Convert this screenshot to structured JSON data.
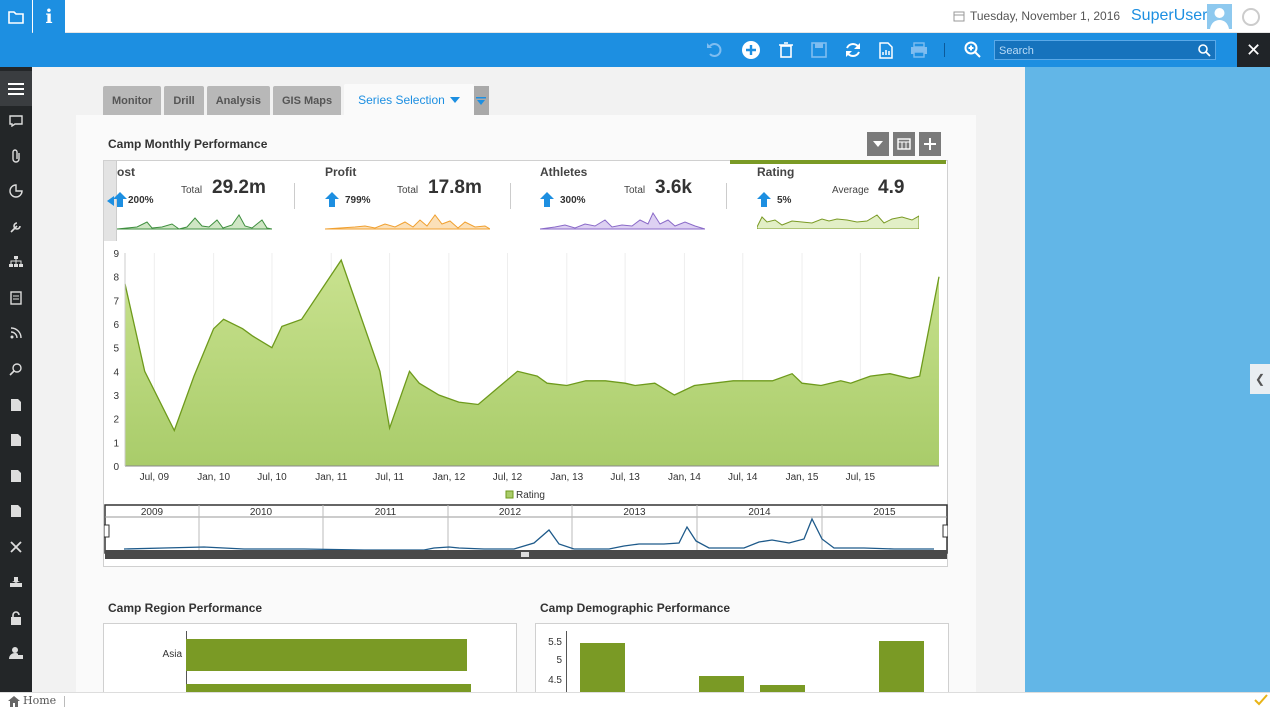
{
  "header": {
    "date": "Tuesday, November 1, 2016",
    "user": "SuperUser",
    "info_label": "i"
  },
  "toolbar": {
    "search_placeholder": "Search",
    "tools": [
      "undo-icon",
      "add-icon",
      "delete-icon",
      "save-icon",
      "refresh-icon",
      "export-icon",
      "print-icon",
      "zoom-icon"
    ]
  },
  "sidebar": {
    "items": [
      "menu-icon",
      "chat-icon",
      "attachment-icon",
      "chart-icon",
      "tools-icon",
      "hierarchy-icon",
      "document-icon",
      "rss-icon",
      "search-icon",
      "file-icon",
      "file-icon",
      "file-icon",
      "file-icon",
      "close-icon",
      "inbox-icon",
      "lock-icon",
      "user-lock-icon"
    ]
  },
  "tabs": [
    {
      "label": "Monitor"
    },
    {
      "label": "Drill"
    },
    {
      "label": "Analysis"
    },
    {
      "label": "GIS Maps"
    },
    {
      "label": "Series Selection",
      "active": true
    }
  ],
  "main": {
    "title": "Camp Monthly Performance",
    "kpis": [
      {
        "name": "Cost",
        "shown_name": "ost",
        "agg": "Total",
        "value": "29.2m",
        "change": "200%",
        "color": "#3f8f3f"
      },
      {
        "name": "Profit",
        "shown_name": "Profit",
        "agg": "Total",
        "value": "17.8m",
        "change": "799%",
        "color": "#f0a030"
      },
      {
        "name": "Athletes",
        "shown_name": "Athletes",
        "agg": "Total",
        "value": "3.6k",
        "change": "300%",
        "color": "#8a6ac8"
      },
      {
        "name": "Rating",
        "shown_name": "Rating",
        "agg": "Average",
        "value": "4.9",
        "change": "5%",
        "color": "#7a9a25"
      }
    ],
    "legend": "Rating",
    "navigator_years": [
      "2009",
      "2010",
      "2011",
      "2012",
      "2013",
      "2014",
      "2015"
    ],
    "region_title": "Camp Region Performance",
    "region_category": "Asia",
    "demographic_title": "Camp Demographic Performance",
    "demographic_ticks": [
      "5.5",
      "5",
      "4.5"
    ]
  },
  "status": {
    "home": "Home"
  },
  "colors": {
    "accent": "#1d8fe1",
    "sidebar": "#232628",
    "right_panel": "#62b6e7",
    "rating_line": "#6e9a1c",
    "rating_fill": "#bfdc84",
    "bar": "#7a9a25",
    "navigator_line": "#1e5a8a"
  },
  "chart_data": {
    "type": "area",
    "title": "",
    "xlabel": "",
    "ylabel": "",
    "ylim": [
      0,
      9
    ],
    "yticks": [
      0,
      1,
      2,
      3,
      4,
      5,
      6,
      7,
      8,
      9
    ],
    "xticks": [
      "Jul, 09",
      "Jan, 10",
      "Jul, 10",
      "Jan, 11",
      "Jul, 11",
      "Jan, 12",
      "Jul, 12",
      "Jan, 13",
      "Jul, 13",
      "Jan, 14",
      "Jul, 14",
      "Jan, 15",
      "Jul, 15"
    ],
    "legend": "bottom",
    "series": [
      {
        "name": "Rating",
        "x": [
          "2009-04",
          "2009-06",
          "2009-09",
          "2009-11",
          "2010-01",
          "2010-02",
          "2010-04",
          "2010-05",
          "2010-07",
          "2010-08",
          "2010-10",
          "2011-02",
          "2011-06",
          "2011-07",
          "2011-09",
          "2011-10",
          "2011-12",
          "2012-02",
          "2012-04",
          "2012-06",
          "2012-08",
          "2012-10",
          "2012-11",
          "2013-01",
          "2013-03",
          "2013-05",
          "2013-07",
          "2013-08",
          "2013-10",
          "2013-12",
          "2014-02",
          "2014-04",
          "2014-06",
          "2014-08",
          "2014-10",
          "2014-12",
          "2015-01",
          "2015-03",
          "2015-05",
          "2015-06",
          "2015-08",
          "2015-10",
          "2015-12",
          "2016-01",
          "2016-03"
        ],
        "values": [
          7.7,
          4.0,
          1.5,
          3.8,
          5.8,
          6.2,
          5.8,
          5.5,
          5.0,
          5.9,
          6.2,
          8.7,
          4.0,
          1.6,
          4.0,
          3.5,
          3.0,
          2.7,
          2.6,
          3.3,
          4.0,
          3.8,
          3.5,
          3.4,
          3.6,
          3.6,
          3.5,
          3.4,
          3.5,
          3.0,
          3.4,
          3.5,
          3.6,
          3.6,
          3.6,
          3.9,
          3.5,
          3.4,
          3.6,
          3.5,
          3.8,
          3.9,
          3.7,
          3.8,
          8.0
        ]
      }
    ]
  }
}
